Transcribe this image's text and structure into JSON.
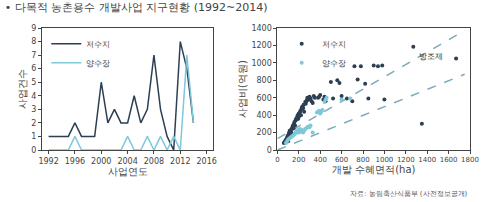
{
  "title": "• 다목적 농촌용수 개발사업 지구현황 (1992~2014)",
  "footnote": "자료: 농림축산식품부 (사전정보공개)",
  "chart_data": [
    {
      "type": "line",
      "xlabel": "사업연도",
      "ylabel": "사업건수",
      "xlim": [
        1991,
        2017
      ],
      "ylim": [
        0,
        9
      ],
      "xticks": [
        1992,
        1996,
        2000,
        2004,
        2008,
        2012,
        2016
      ],
      "yticks": [
        0,
        1,
        2,
        3,
        4,
        5,
        6,
        7,
        8,
        9
      ],
      "grid": false,
      "legend": "upper left",
      "x": [
        1992,
        1993,
        1994,
        1995,
        1996,
        1997,
        1998,
        1999,
        2000,
        2001,
        2002,
        2003,
        2004,
        2005,
        2006,
        2007,
        2008,
        2009,
        2010,
        2011,
        2012,
        2013,
        2014
      ],
      "series": [
        {
          "name": "저수지",
          "color": "#2d3f52",
          "values": [
            1,
            1,
            1,
            1,
            2,
            1,
            1,
            1,
            5,
            2,
            3,
            2,
            2,
            4,
            2,
            3,
            7,
            3,
            1,
            0,
            8,
            6,
            2
          ]
        },
        {
          "name": "양수장",
          "color": "#7ec8d8",
          "values": [
            0,
            0,
            0,
            0,
            1,
            0,
            0,
            0,
            0,
            0,
            0,
            0,
            1,
            0,
            0,
            1,
            0,
            1,
            0,
            1,
            0,
            7,
            2
          ]
        }
      ]
    },
    {
      "type": "scatter",
      "xlabel": "개발 수혜면적(ha)",
      "ylabel": "사업비(억원)",
      "xlim": [
        0,
        1800
      ],
      "ylim": [
        0,
        1400
      ],
      "xticks": [
        0,
        200,
        400,
        600,
        800,
        1000,
        1200,
        1400,
        1600,
        1800
      ],
      "yticks": [
        0,
        200,
        400,
        600,
        800,
        1000,
        1200,
        1400
      ],
      "grid": false,
      "legend": "upper left",
      "series": [
        {
          "type": "line",
          "line_style": "dashed",
          "color": "#7aaabb",
          "x": [
            0,
            1750
          ],
          "values": [
            130,
            1370
          ]
        },
        {
          "type": "line",
          "line_style": "dashed",
          "color": "#7aaabb",
          "x": [
            0,
            1750
          ],
          "values": [
            0,
            870
          ]
        },
        {
          "name": "저수지",
          "color": "#2d3f52",
          "x": [
            60,
            70,
            80,
            90,
            95,
            100,
            105,
            110,
            115,
            120,
            125,
            130,
            135,
            140,
            145,
            150,
            155,
            160,
            165,
            170,
            175,
            180,
            185,
            190,
            195,
            200,
            205,
            210,
            215,
            220,
            225,
            230,
            235,
            240,
            245,
            250,
            260,
            265,
            270,
            275,
            280,
            290,
            300,
            310,
            320,
            330,
            340,
            350,
            380,
            390,
            400,
            430,
            440,
            450,
            500,
            520,
            560,
            580,
            600,
            650,
            700,
            720,
            750,
            780,
            820,
            850,
            900,
            940,
            980,
            1000,
            1350,
            1670
          ],
          "values": [
            80,
            100,
            120,
            140,
            160,
            100,
            180,
            200,
            220,
            180,
            230,
            200,
            240,
            260,
            280,
            250,
            300,
            320,
            280,
            340,
            360,
            350,
            380,
            400,
            360,
            420,
            390,
            430,
            450,
            400,
            470,
            490,
            500,
            480,
            520,
            440,
            550,
            530,
            560,
            570,
            600,
            580,
            610,
            590,
            560,
            540,
            620,
            600,
            600,
            610,
            630,
            580,
            610,
            560,
            780,
            590,
            800,
            770,
            620,
            590,
            560,
            960,
            810,
            960,
            760,
            590,
            970,
            960,
            970,
            580,
            300,
            1050
          ]
        },
        {
          "name": "양수장",
          "color": "#7ec8d8",
          "x": [
            80,
            90,
            100,
            110,
            120,
            130,
            140,
            150,
            160,
            165,
            170,
            175,
            180,
            185,
            190,
            195,
            200,
            210,
            220,
            230,
            240,
            250,
            260,
            270,
            280,
            290,
            300,
            310,
            330,
            370,
            380,
            390,
            400,
            410,
            420,
            440,
            450,
            460,
            600,
            680
          ],
          "values": [
            80,
            100,
            120,
            130,
            140,
            150,
            160,
            170,
            180,
            190,
            200,
            210,
            220,
            200,
            220,
            230,
            200,
            240,
            210,
            230,
            200,
            220,
            240,
            250,
            260,
            270,
            260,
            280,
            200,
            430,
            440,
            450,
            420,
            440,
            460,
            550,
            580,
            600,
            580,
            590
          ]
        },
        {
          "color": "#2d3f52",
          "x": [
            1270
          ],
          "values": [
            1185
          ]
        }
      ],
      "annotations": [
        {
          "text": "방조제",
          "x": 1270,
          "y": 1185
        }
      ]
    }
  ]
}
